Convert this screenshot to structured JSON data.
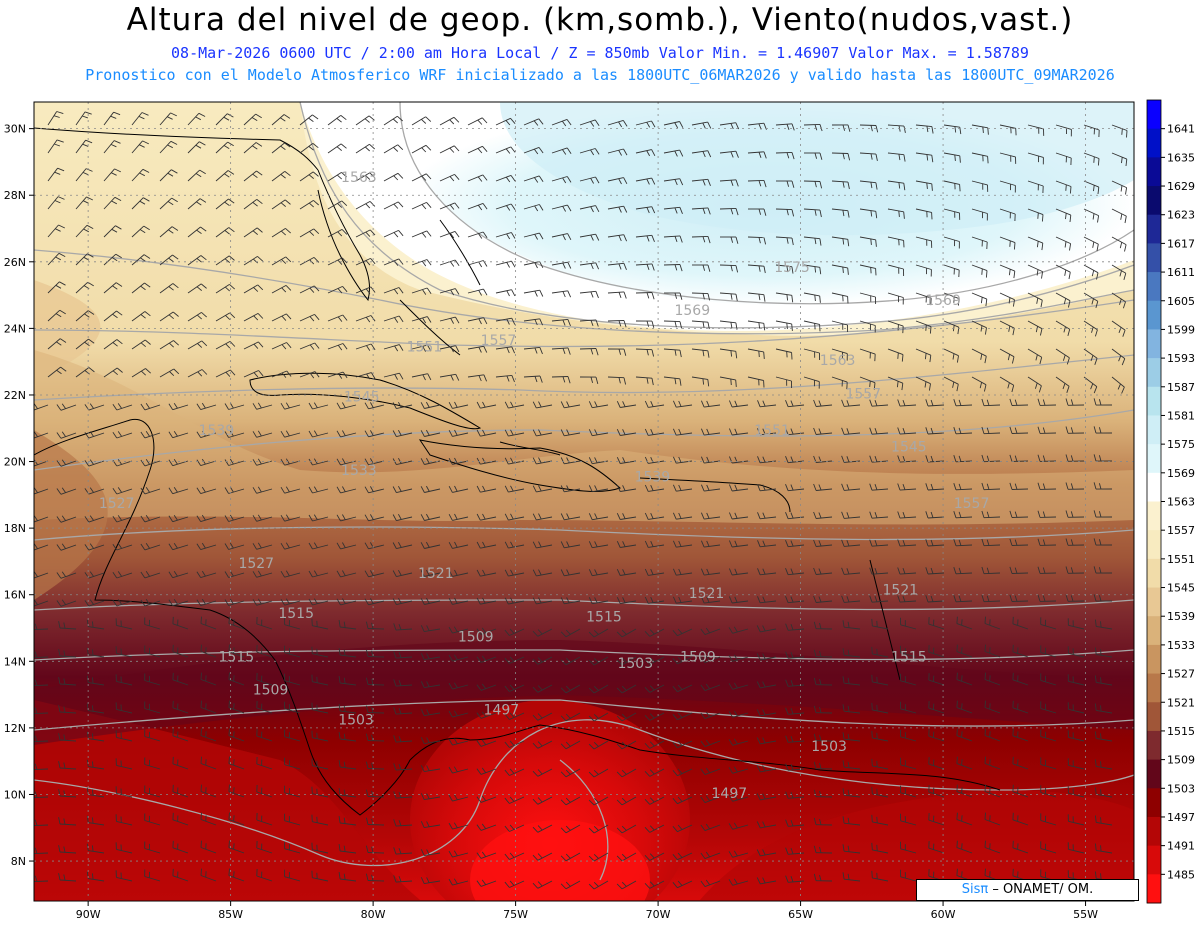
{
  "header": {
    "title": "Altura del nivel de geop. (km,somb.), Viento(nudos,vast.)",
    "line2": "08-Mar-2026  0600 UTC / 2:00 am Hora Local / Z = 850mb    Valor Min. = 1.46907  Valor Max. = 1.58789",
    "line3": "Pronostico con el Modelo Atmosferico WRF inicializado a las 1800UTC_06MAR2026 y valido hasta las  1800UTC_09MAR2026"
  },
  "map": {
    "lat_ticks": [
      "30N",
      "28N",
      "26N",
      "24N",
      "22N",
      "20N",
      "18N",
      "16N",
      "14N",
      "12N",
      "10N",
      "8N"
    ],
    "lon_ticks": [
      "90W",
      "85W",
      "80W",
      "75W",
      "70W",
      "65W",
      "60W",
      "55W"
    ],
    "lat_range": [
      6.8,
      30.8
    ],
    "lon_range": [
      -91.9,
      -53.3
    ],
    "contour_labels": [
      {
        "text": "1497",
        "lon": -75.5,
        "lat": 12.4
      },
      {
        "text": "1497",
        "lon": -67.5,
        "lat": 9.9
      },
      {
        "text": "1503",
        "lon": -70.8,
        "lat": 13.8
      },
      {
        "text": "1503",
        "lon": -80.6,
        "lat": 12.1
      },
      {
        "text": "1503",
        "lon": -64.0,
        "lat": 11.3
      },
      {
        "text": "1509",
        "lon": -76.4,
        "lat": 14.6
      },
      {
        "text": "1509",
        "lon": -83.6,
        "lat": 13.0
      },
      {
        "text": "1509",
        "lon": -68.6,
        "lat": 14.0
      },
      {
        "text": "1515",
        "lon": -84.8,
        "lat": 14.0
      },
      {
        "text": "1515",
        "lon": -82.7,
        "lat": 15.3
      },
      {
        "text": "1515",
        "lon": -71.9,
        "lat": 15.2
      },
      {
        "text": "1515",
        "lon": -61.2,
        "lat": 14.0
      },
      {
        "text": "1521",
        "lon": -77.8,
        "lat": 16.5
      },
      {
        "text": "1521",
        "lon": -68.3,
        "lat": 15.9
      },
      {
        "text": "1521",
        "lon": -61.5,
        "lat": 16.0
      },
      {
        "text": "1527",
        "lon": -84.1,
        "lat": 16.8
      },
      {
        "text": "1527",
        "lon": -89.0,
        "lat": 18.6
      },
      {
        "text": "1533",
        "lon": -80.5,
        "lat": 19.6
      },
      {
        "text": "1539",
        "lon": -85.5,
        "lat": 20.8
      },
      {
        "text": "1539",
        "lon": -70.2,
        "lat": 19.4
      },
      {
        "text": "1545",
        "lon": -80.4,
        "lat": 21.8
      },
      {
        "text": "1545",
        "lon": -61.2,
        "lat": 20.3
      },
      {
        "text": "1551",
        "lon": -78.2,
        "lat": 23.3
      },
      {
        "text": "1551",
        "lon": -66.0,
        "lat": 20.8
      },
      {
        "text": "1557",
        "lon": -75.6,
        "lat": 23.5
      },
      {
        "text": "1557",
        "lon": -62.8,
        "lat": 21.9
      },
      {
        "text": "1557",
        "lon": -59.0,
        "lat": 18.6
      },
      {
        "text": "1563",
        "lon": -80.5,
        "lat": 28.4
      },
      {
        "text": "1563",
        "lon": -63.7,
        "lat": 22.9
      },
      {
        "text": "1569",
        "lon": -68.8,
        "lat": 24.4
      },
      {
        "text": "1569",
        "lon": -60.0,
        "lat": 24.7
      },
      {
        "text": "1575",
        "lon": -65.3,
        "lat": 25.7
      }
    ]
  },
  "colorbar": {
    "levels": [
      "1641",
      "1635",
      "1629",
      "1623",
      "1617",
      "1611",
      "1605",
      "1599",
      "1593",
      "1587",
      "1581",
      "1575",
      "1569",
      "1563",
      "1557",
      "1551",
      "1545",
      "1539",
      "1533",
      "1527",
      "1521",
      "1515",
      "1509",
      "1503",
      "1497",
      "1491",
      "1485"
    ],
    "colors": [
      "#0a00ff",
      "#0010c8",
      "#0a0a96",
      "#0a0a6e",
      "#1e2896",
      "#3450a8",
      "#4a78c0",
      "#5a96d0",
      "#82b4e0",
      "#9ccde6",
      "#b8e4ee",
      "#cfeef6",
      "#dff6fa",
      "#ffffff",
      "#fbf1cf",
      "#f8ebc0",
      "#f1dca9",
      "#e8c894",
      "#dab27a",
      "#c99560",
      "#b8784a",
      "#a05638",
      "#7e2a2e",
      "#62061a",
      "#8e0000",
      "#b40606",
      "#d80a0a",
      "#ff1010"
    ]
  },
  "credit": {
    "brand": "Sisπ",
    "text": " – ONAMET/       OM."
  }
}
